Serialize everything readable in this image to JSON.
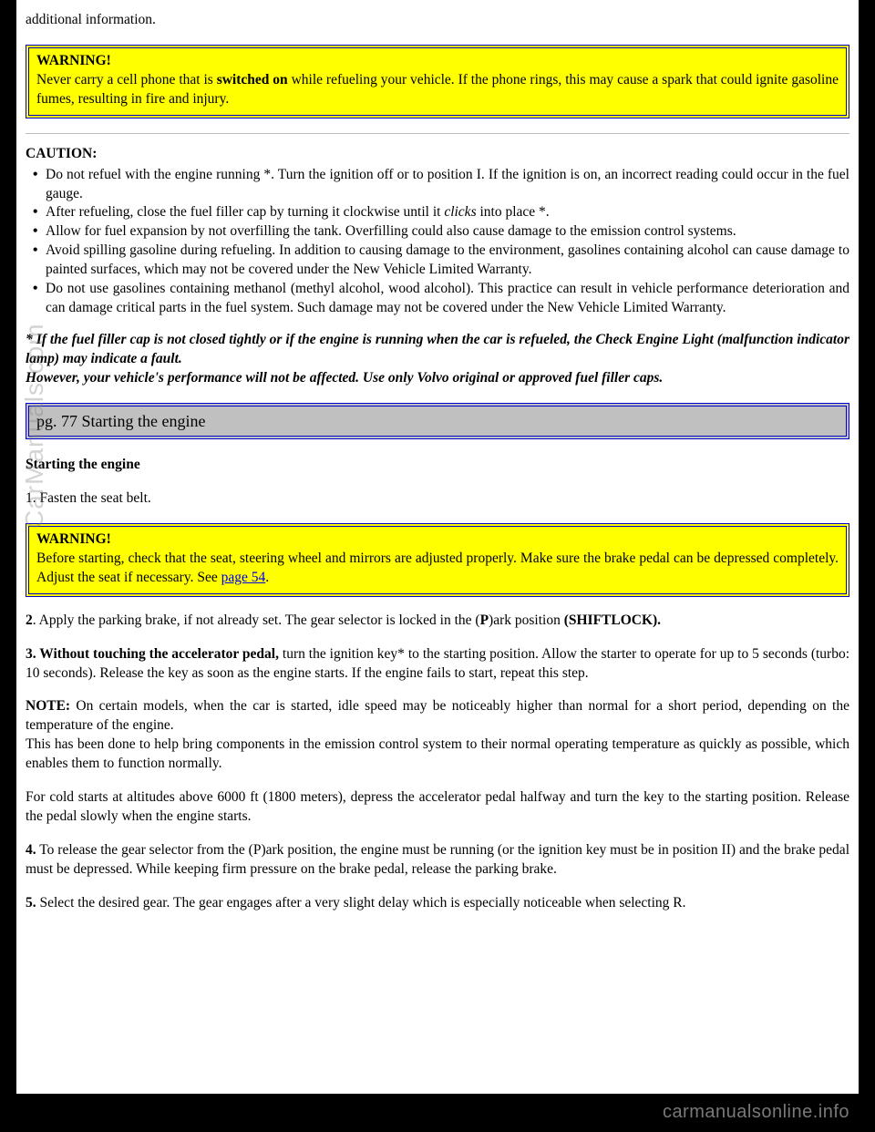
{
  "intro_line": "additional information.",
  "warning1": {
    "title": "WARNING!",
    "text_before": "Never carry a cell phone that is ",
    "bold": "switched on",
    "text_after": " while refueling your vehicle. If the phone rings, this may cause a spark that could ignite gasoline fumes, resulting in fire and injury."
  },
  "caution": {
    "title": "CAUTION:",
    "items": [
      {
        "text": "Do not refuel with the engine running *. Turn the ignition off or to position I. If the ignition is on, an incorrect reading could occur in the fuel gauge."
      },
      {
        "pre": "After refueling, close the fuel filler cap by turning it clockwise until it ",
        "ital": "clicks",
        "post": " into place *."
      },
      {
        "text": "Allow for fuel expansion by not overfilling the tank. Overfilling could also cause damage to the emission control systems."
      },
      {
        "text": "Avoid spilling gasoline during refueling. In addition to causing damage to the environment, gasolines containing alcohol can cause damage to painted surfaces, which may not be covered under the New Vehicle Limited Warranty."
      },
      {
        "text": "Do not use gasolines containing methanol (methyl alcohol, wood alcohol). This practice can result in vehicle performance deterioration and can damage critical parts in the fuel system. Such damage may not be covered under the New Vehicle Limited Warranty."
      }
    ]
  },
  "footnote": {
    "line1": "* If the fuel filler cap is not closed tightly or if the engine is running when the car is refueled, the Check Engine Light (malfunction indicator lamp) may indicate a fault.",
    "line2": "However, your vehicle's performance will not be affected. Use only Volvo original or approved fuel filler caps."
  },
  "section_header": "pg. 77 Starting the engine",
  "subhead": "Starting the engine",
  "step1": "1. Fasten the seat belt.",
  "warning2": {
    "title": "WARNING!",
    "text_before": "Before starting, check that the seat, steering wheel and mirrors are adjusted properly. Make sure the brake pedal can be depressed completely. Adjust the seat if necessary. See ",
    "link_text": "page 54",
    "text_after": "."
  },
  "step2": {
    "num": "2",
    "mid": ". Apply the parking brake, if not already set. The gear selector is locked in the (",
    "p": "P",
    "mid2": ")ark position ",
    "shift": "(SHIFTLOCK)."
  },
  "step3": {
    "lead": "3. Without touching the accelerator pedal,",
    "rest": " turn the ignition key* to the starting position. Allow the starter to operate for up to 5 seconds (turbo: 10 seconds). Release the key as soon as the engine starts. If the engine fails to start, repeat this step."
  },
  "note": {
    "label": "NOTE:",
    "text1": " On certain models, when the car is started, idle speed may be noticeably higher than normal for a short period, depending on the temperature of the engine.",
    "text2": "This has been done to help bring components in the emission control system to their normal operating temperature as quickly as possible, which enables them to function normally."
  },
  "cold_start": "For cold starts at altitudes above 6000 ft (1800 meters), depress the accelerator pedal halfway and turn the key to the starting position. Release the pedal slowly when the engine starts.",
  "step4": {
    "num": "4.",
    "text": " To release the gear selector from the (P)ark position, the engine must be running (or the ignition key must be in position II) and the brake pedal must be depressed. While keeping firm pressure on the brake pedal, release the parking brake."
  },
  "step5": {
    "num": "5.",
    "text": " Select the desired gear. The gear engages after a very slight delay which is especially noticeable when selecting R."
  },
  "watermark_side": "CarManuals.com",
  "watermark_footer": "carmanualsonline.info"
}
